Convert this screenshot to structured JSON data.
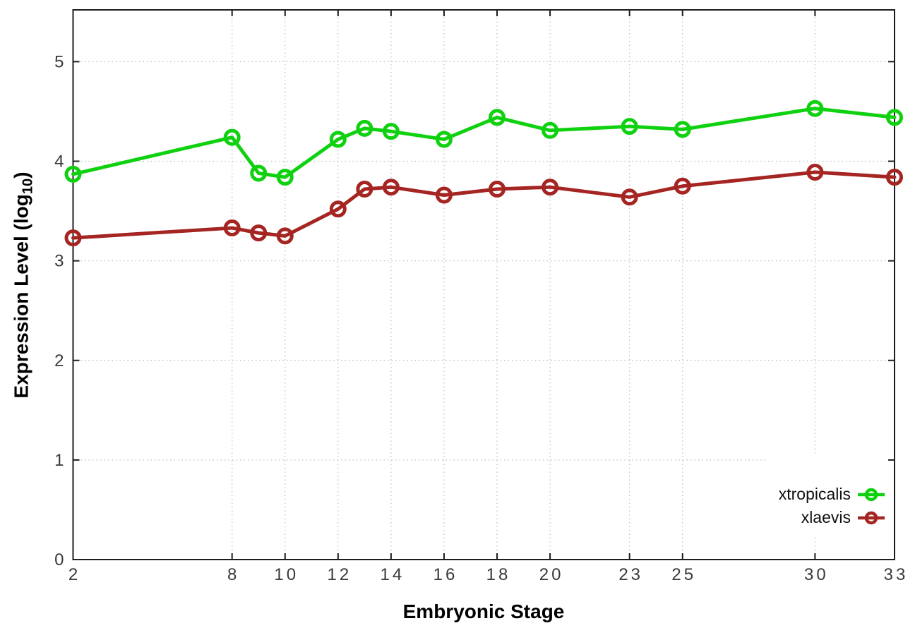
{
  "chart_data": {
    "type": "line",
    "xlabel": "Embryonic Stage",
    "ylabel": "Expression Level (log10)",
    "ylabel_prefix": "Expression Level (log",
    "ylabel_sub": "10",
    "ylabel_suffix": ")",
    "x": [
      2,
      8,
      9,
      10,
      12,
      13,
      14,
      16,
      18,
      20,
      23,
      25,
      30,
      33
    ],
    "series": [
      {
        "name": "xtropicalis",
        "color": "#10d110",
        "values": [
          3.87,
          4.24,
          3.88,
          3.84,
          4.22,
          4.33,
          4.3,
          4.22,
          4.44,
          4.31,
          4.35,
          4.32,
          4.53,
          4.44
        ]
      },
      {
        "name": "xlaevis",
        "color": "#a42522",
        "values": [
          3.23,
          3.33,
          3.28,
          3.25,
          3.52,
          3.72,
          3.74,
          3.66,
          3.72,
          3.74,
          3.64,
          3.75,
          3.89,
          3.84
        ]
      }
    ],
    "xticks": [
      2,
      8,
      10,
      12,
      14,
      16,
      18,
      20,
      23,
      25,
      30,
      33
    ],
    "yticks": [
      0,
      1,
      2,
      3,
      4,
      5
    ],
    "xlim": [
      2,
      33
    ],
    "ylim": [
      0,
      5.52
    ],
    "grid": true,
    "legend_position": "inside-bottom-right",
    "colors": {
      "axis": "#1c1c1c",
      "grid": "#bdbdbd",
      "tick_label": "#3a3a3a",
      "background": "#ffffff"
    }
  }
}
